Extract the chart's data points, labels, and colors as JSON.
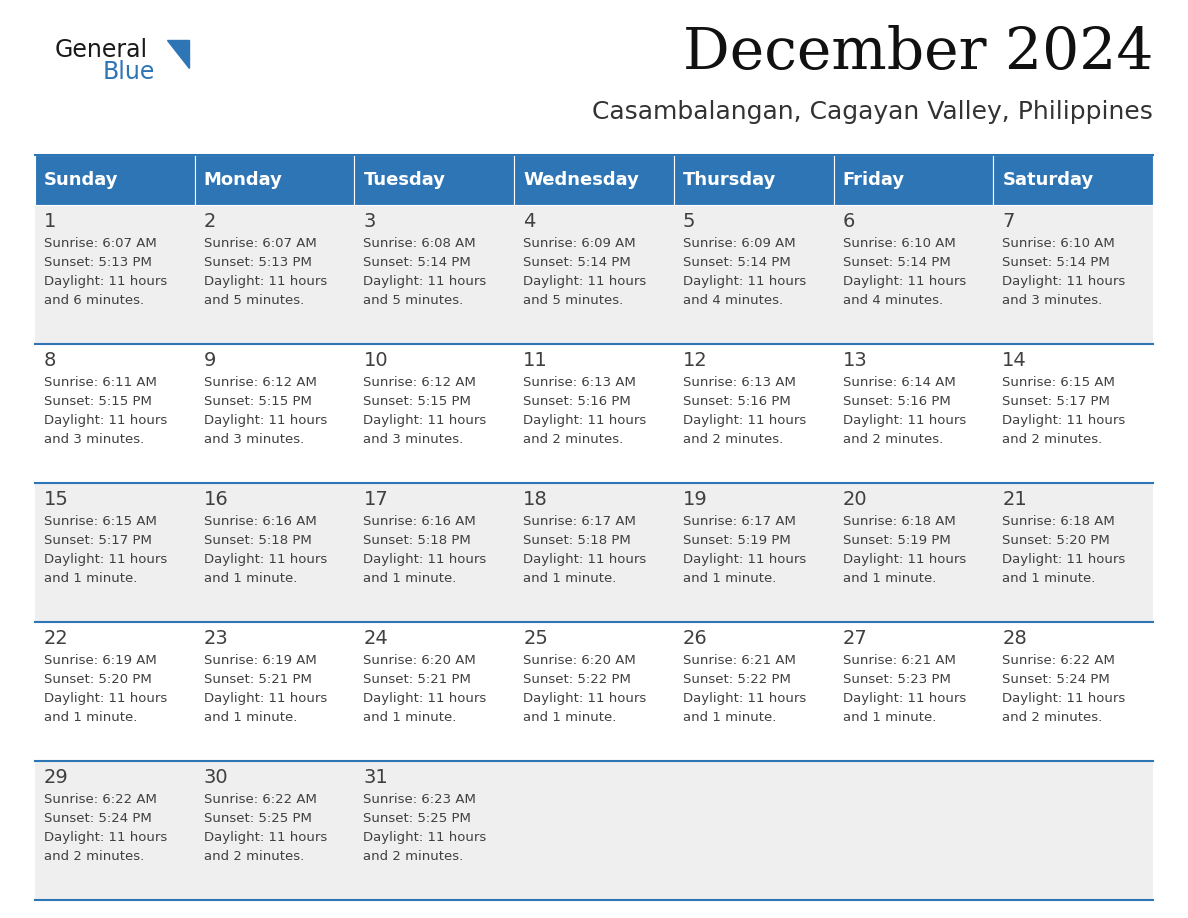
{
  "title": "December 2024",
  "subtitle": "Casambalangan, Cagayan Valley, Philippines",
  "header_color": "#2E75B6",
  "header_text_color": "#FFFFFF",
  "day_names": [
    "Sunday",
    "Monday",
    "Tuesday",
    "Wednesday",
    "Thursday",
    "Friday",
    "Saturday"
  ],
  "bg_color": "#FFFFFF",
  "cell_bg_even": "#EFEFEF",
  "cell_bg_odd": "#FFFFFF",
  "separator_color": "#2E75B6",
  "text_color": "#404040",
  "days": [
    {
      "day": 1,
      "col": 0,
      "row": 0,
      "sunrise": "6:07 AM",
      "sunset": "5:13 PM",
      "daylight_hrs": "11 hours",
      "daylight_min": "and 6 minutes."
    },
    {
      "day": 2,
      "col": 1,
      "row": 0,
      "sunrise": "6:07 AM",
      "sunset": "5:13 PM",
      "daylight_hrs": "11 hours",
      "daylight_min": "and 5 minutes."
    },
    {
      "day": 3,
      "col": 2,
      "row": 0,
      "sunrise": "6:08 AM",
      "sunset": "5:14 PM",
      "daylight_hrs": "11 hours",
      "daylight_min": "and 5 minutes."
    },
    {
      "day": 4,
      "col": 3,
      "row": 0,
      "sunrise": "6:09 AM",
      "sunset": "5:14 PM",
      "daylight_hrs": "11 hours",
      "daylight_min": "and 5 minutes."
    },
    {
      "day": 5,
      "col": 4,
      "row": 0,
      "sunrise": "6:09 AM",
      "sunset": "5:14 PM",
      "daylight_hrs": "11 hours",
      "daylight_min": "and 4 minutes."
    },
    {
      "day": 6,
      "col": 5,
      "row": 0,
      "sunrise": "6:10 AM",
      "sunset": "5:14 PM",
      "daylight_hrs": "11 hours",
      "daylight_min": "and 4 minutes."
    },
    {
      "day": 7,
      "col": 6,
      "row": 0,
      "sunrise": "6:10 AM",
      "sunset": "5:14 PM",
      "daylight_hrs": "11 hours",
      "daylight_min": "and 3 minutes."
    },
    {
      "day": 8,
      "col": 0,
      "row": 1,
      "sunrise": "6:11 AM",
      "sunset": "5:15 PM",
      "daylight_hrs": "11 hours",
      "daylight_min": "and 3 minutes."
    },
    {
      "day": 9,
      "col": 1,
      "row": 1,
      "sunrise": "6:12 AM",
      "sunset": "5:15 PM",
      "daylight_hrs": "11 hours",
      "daylight_min": "and 3 minutes."
    },
    {
      "day": 10,
      "col": 2,
      "row": 1,
      "sunrise": "6:12 AM",
      "sunset": "5:15 PM",
      "daylight_hrs": "11 hours",
      "daylight_min": "and 3 minutes."
    },
    {
      "day": 11,
      "col": 3,
      "row": 1,
      "sunrise": "6:13 AM",
      "sunset": "5:16 PM",
      "daylight_hrs": "11 hours",
      "daylight_min": "and 2 minutes."
    },
    {
      "day": 12,
      "col": 4,
      "row": 1,
      "sunrise": "6:13 AM",
      "sunset": "5:16 PM",
      "daylight_hrs": "11 hours",
      "daylight_min": "and 2 minutes."
    },
    {
      "day": 13,
      "col": 5,
      "row": 1,
      "sunrise": "6:14 AM",
      "sunset": "5:16 PM",
      "daylight_hrs": "11 hours",
      "daylight_min": "and 2 minutes."
    },
    {
      "day": 14,
      "col": 6,
      "row": 1,
      "sunrise": "6:15 AM",
      "sunset": "5:17 PM",
      "daylight_hrs": "11 hours",
      "daylight_min": "and 2 minutes."
    },
    {
      "day": 15,
      "col": 0,
      "row": 2,
      "sunrise": "6:15 AM",
      "sunset": "5:17 PM",
      "daylight_hrs": "11 hours",
      "daylight_min": "and 1 minute."
    },
    {
      "day": 16,
      "col": 1,
      "row": 2,
      "sunrise": "6:16 AM",
      "sunset": "5:18 PM",
      "daylight_hrs": "11 hours",
      "daylight_min": "and 1 minute."
    },
    {
      "day": 17,
      "col": 2,
      "row": 2,
      "sunrise": "6:16 AM",
      "sunset": "5:18 PM",
      "daylight_hrs": "11 hours",
      "daylight_min": "and 1 minute."
    },
    {
      "day": 18,
      "col": 3,
      "row": 2,
      "sunrise": "6:17 AM",
      "sunset": "5:18 PM",
      "daylight_hrs": "11 hours",
      "daylight_min": "and 1 minute."
    },
    {
      "day": 19,
      "col": 4,
      "row": 2,
      "sunrise": "6:17 AM",
      "sunset": "5:19 PM",
      "daylight_hrs": "11 hours",
      "daylight_min": "and 1 minute."
    },
    {
      "day": 20,
      "col": 5,
      "row": 2,
      "sunrise": "6:18 AM",
      "sunset": "5:19 PM",
      "daylight_hrs": "11 hours",
      "daylight_min": "and 1 minute."
    },
    {
      "day": 21,
      "col": 6,
      "row": 2,
      "sunrise": "6:18 AM",
      "sunset": "5:20 PM",
      "daylight_hrs": "11 hours",
      "daylight_min": "and 1 minute."
    },
    {
      "day": 22,
      "col": 0,
      "row": 3,
      "sunrise": "6:19 AM",
      "sunset": "5:20 PM",
      "daylight_hrs": "11 hours",
      "daylight_min": "and 1 minute."
    },
    {
      "day": 23,
      "col": 1,
      "row": 3,
      "sunrise": "6:19 AM",
      "sunset": "5:21 PM",
      "daylight_hrs": "11 hours",
      "daylight_min": "and 1 minute."
    },
    {
      "day": 24,
      "col": 2,
      "row": 3,
      "sunrise": "6:20 AM",
      "sunset": "5:21 PM",
      "daylight_hrs": "11 hours",
      "daylight_min": "and 1 minute."
    },
    {
      "day": 25,
      "col": 3,
      "row": 3,
      "sunrise": "6:20 AM",
      "sunset": "5:22 PM",
      "daylight_hrs": "11 hours",
      "daylight_min": "and 1 minute."
    },
    {
      "day": 26,
      "col": 4,
      "row": 3,
      "sunrise": "6:21 AM",
      "sunset": "5:22 PM",
      "daylight_hrs": "11 hours",
      "daylight_min": "and 1 minute."
    },
    {
      "day": 27,
      "col": 5,
      "row": 3,
      "sunrise": "6:21 AM",
      "sunset": "5:23 PM",
      "daylight_hrs": "11 hours",
      "daylight_min": "and 1 minute."
    },
    {
      "day": 28,
      "col": 6,
      "row": 3,
      "sunrise": "6:22 AM",
      "sunset": "5:24 PM",
      "daylight_hrs": "11 hours",
      "daylight_min": "and 2 minutes."
    },
    {
      "day": 29,
      "col": 0,
      "row": 4,
      "sunrise": "6:22 AM",
      "sunset": "5:24 PM",
      "daylight_hrs": "11 hours",
      "daylight_min": "and 2 minutes."
    },
    {
      "day": 30,
      "col": 1,
      "row": 4,
      "sunrise": "6:22 AM",
      "sunset": "5:25 PM",
      "daylight_hrs": "11 hours",
      "daylight_min": "and 2 minutes."
    },
    {
      "day": 31,
      "col": 2,
      "row": 4,
      "sunrise": "6:23 AM",
      "sunset": "5:25 PM",
      "daylight_hrs": "11 hours",
      "daylight_min": "and 2 minutes."
    }
  ],
  "logo_text1": "General",
  "logo_text2": "Blue",
  "logo_color1": "#1a1a1a",
  "logo_color2": "#2E75B6",
  "title_fontsize": 42,
  "subtitle_fontsize": 18,
  "header_fontsize": 13,
  "day_num_fontsize": 14,
  "cell_fontsize": 9.5
}
